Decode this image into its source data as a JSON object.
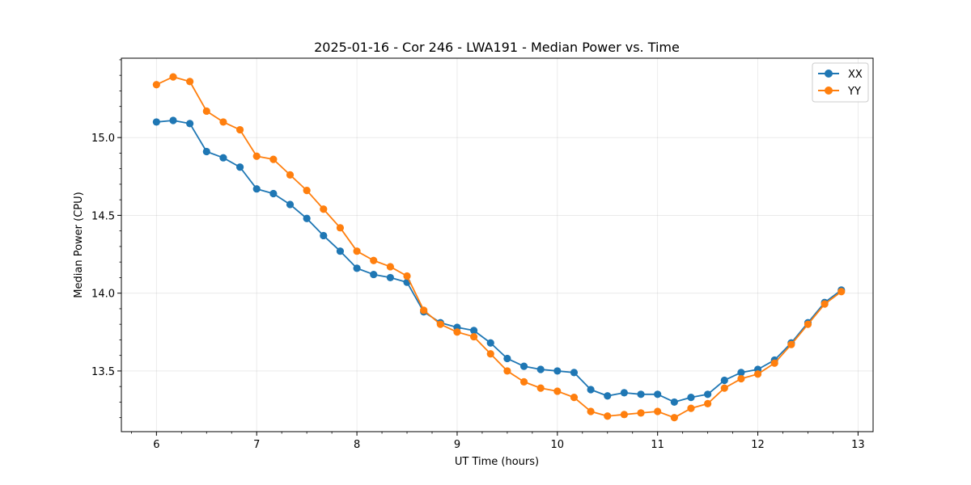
{
  "chart_data": {
    "type": "line",
    "title": "2025-01-16 - Cor 246 - LWA191 - Median Power vs. Time",
    "xlabel": "UT Time (hours)",
    "ylabel": "Median Power (CPU)",
    "xlim": [
      5.65,
      13.15
    ],
    "ylim": [
      13.11,
      15.51
    ],
    "xticks": [
      6,
      7,
      8,
      9,
      10,
      11,
      12,
      13
    ],
    "xtick_labels": [
      "6",
      "7",
      "8",
      "9",
      "10",
      "11",
      "12",
      "13"
    ],
    "yticks": [
      13.5,
      14.0,
      14.5,
      15.0
    ],
    "ytick_labels": [
      "13.5",
      "14.0",
      "14.5",
      "15.0"
    ],
    "grid": true,
    "legend_position": "top-right",
    "x": [
      6.0,
      6.1667,
      6.3333,
      6.5,
      6.6667,
      6.8333,
      7.0,
      7.1667,
      7.3333,
      7.5,
      7.6667,
      7.8333,
      8.0,
      8.1667,
      8.3333,
      8.5,
      8.6667,
      8.8333,
      9.0,
      9.1667,
      9.3333,
      9.5,
      9.6667,
      9.8333,
      10.0,
      10.1667,
      10.3333,
      10.5,
      10.6667,
      10.8333,
      11.0,
      11.1667,
      11.3333,
      11.5,
      11.6667,
      11.8333,
      12.0,
      12.1667,
      12.3333,
      12.5,
      12.6667,
      12.8333
    ],
    "series": [
      {
        "name": "XX",
        "color": "#1f77b4",
        "values": [
          15.1,
          15.11,
          15.09,
          14.91,
          14.87,
          14.81,
          14.67,
          14.64,
          14.57,
          14.48,
          14.37,
          14.27,
          14.16,
          14.12,
          14.1,
          14.07,
          13.88,
          13.81,
          13.78,
          13.76,
          13.68,
          13.58,
          13.53,
          13.51,
          13.5,
          13.49,
          13.38,
          13.34,
          13.36,
          13.35,
          13.35,
          13.3,
          13.33,
          13.35,
          13.44,
          13.49,
          13.51,
          13.57,
          13.68,
          13.81,
          13.94,
          14.02
        ]
      },
      {
        "name": "YY",
        "color": "#ff7f0e",
        "values": [
          15.34,
          15.39,
          15.36,
          15.17,
          15.1,
          15.05,
          14.88,
          14.86,
          14.76,
          14.66,
          14.54,
          14.42,
          14.27,
          14.21,
          14.17,
          14.11,
          13.89,
          13.8,
          13.75,
          13.72,
          13.61,
          13.5,
          13.43,
          13.39,
          13.37,
          13.33,
          13.24,
          13.21,
          13.22,
          13.23,
          13.24,
          13.2,
          13.26,
          13.29,
          13.39,
          13.45,
          13.48,
          13.55,
          13.67,
          13.8,
          13.93,
          14.01
        ]
      }
    ]
  }
}
